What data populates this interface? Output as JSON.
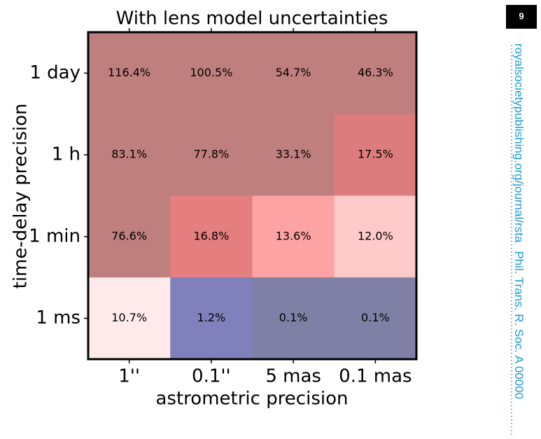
{
  "chart_data": {
    "type": "heatmap",
    "title": "With lens model uncertainties",
    "xlabel": "astrometric precision",
    "ylabel": "time-delay precision",
    "x": [
      "1''",
      "0.1''",
      "5 mas",
      "0.1 mas"
    ],
    "y": [
      "1 day",
      "1 h",
      "1 min",
      "1 ms"
    ],
    "values": [
      [
        116.4,
        100.5,
        54.7,
        46.3
      ],
      [
        83.1,
        77.8,
        33.1,
        17.5
      ],
      [
        76.6,
        16.8,
        13.6,
        12.0
      ],
      [
        10.7,
        1.2,
        0.1,
        0.1
      ]
    ],
    "value_labels": [
      [
        "116.4%",
        "100.5%",
        "54.7%",
        "46.3%"
      ],
      [
        "83.1%",
        "77.8%",
        "33.1%",
        "17.5%"
      ],
      [
        "76.6%",
        "16.8%",
        "13.6%",
        "12.0%"
      ],
      [
        "10.7%",
        "1.2%",
        "0.1%",
        "0.1%"
      ]
    ],
    "colors": [
      [
        "#bf7f7e",
        "#bf7f7e",
        "#bf7f7e",
        "#bf7f7e"
      ],
      [
        "#bf7f7e",
        "#bf7f7e",
        "#bf7f7e",
        "#dd7c7c"
      ],
      [
        "#bf7f7e",
        "#e57e7e",
        "#fda3a3",
        "#fecaca"
      ],
      [
        "#feeaea",
        "#8080bd",
        "#8080a6",
        "#8080a6"
      ]
    ]
  },
  "page": {
    "number": "9",
    "side_text": "royalsocietypublishing.org/journal/rsta",
    "journal": "Phil. Trans. R. Soc. A 00000"
  }
}
